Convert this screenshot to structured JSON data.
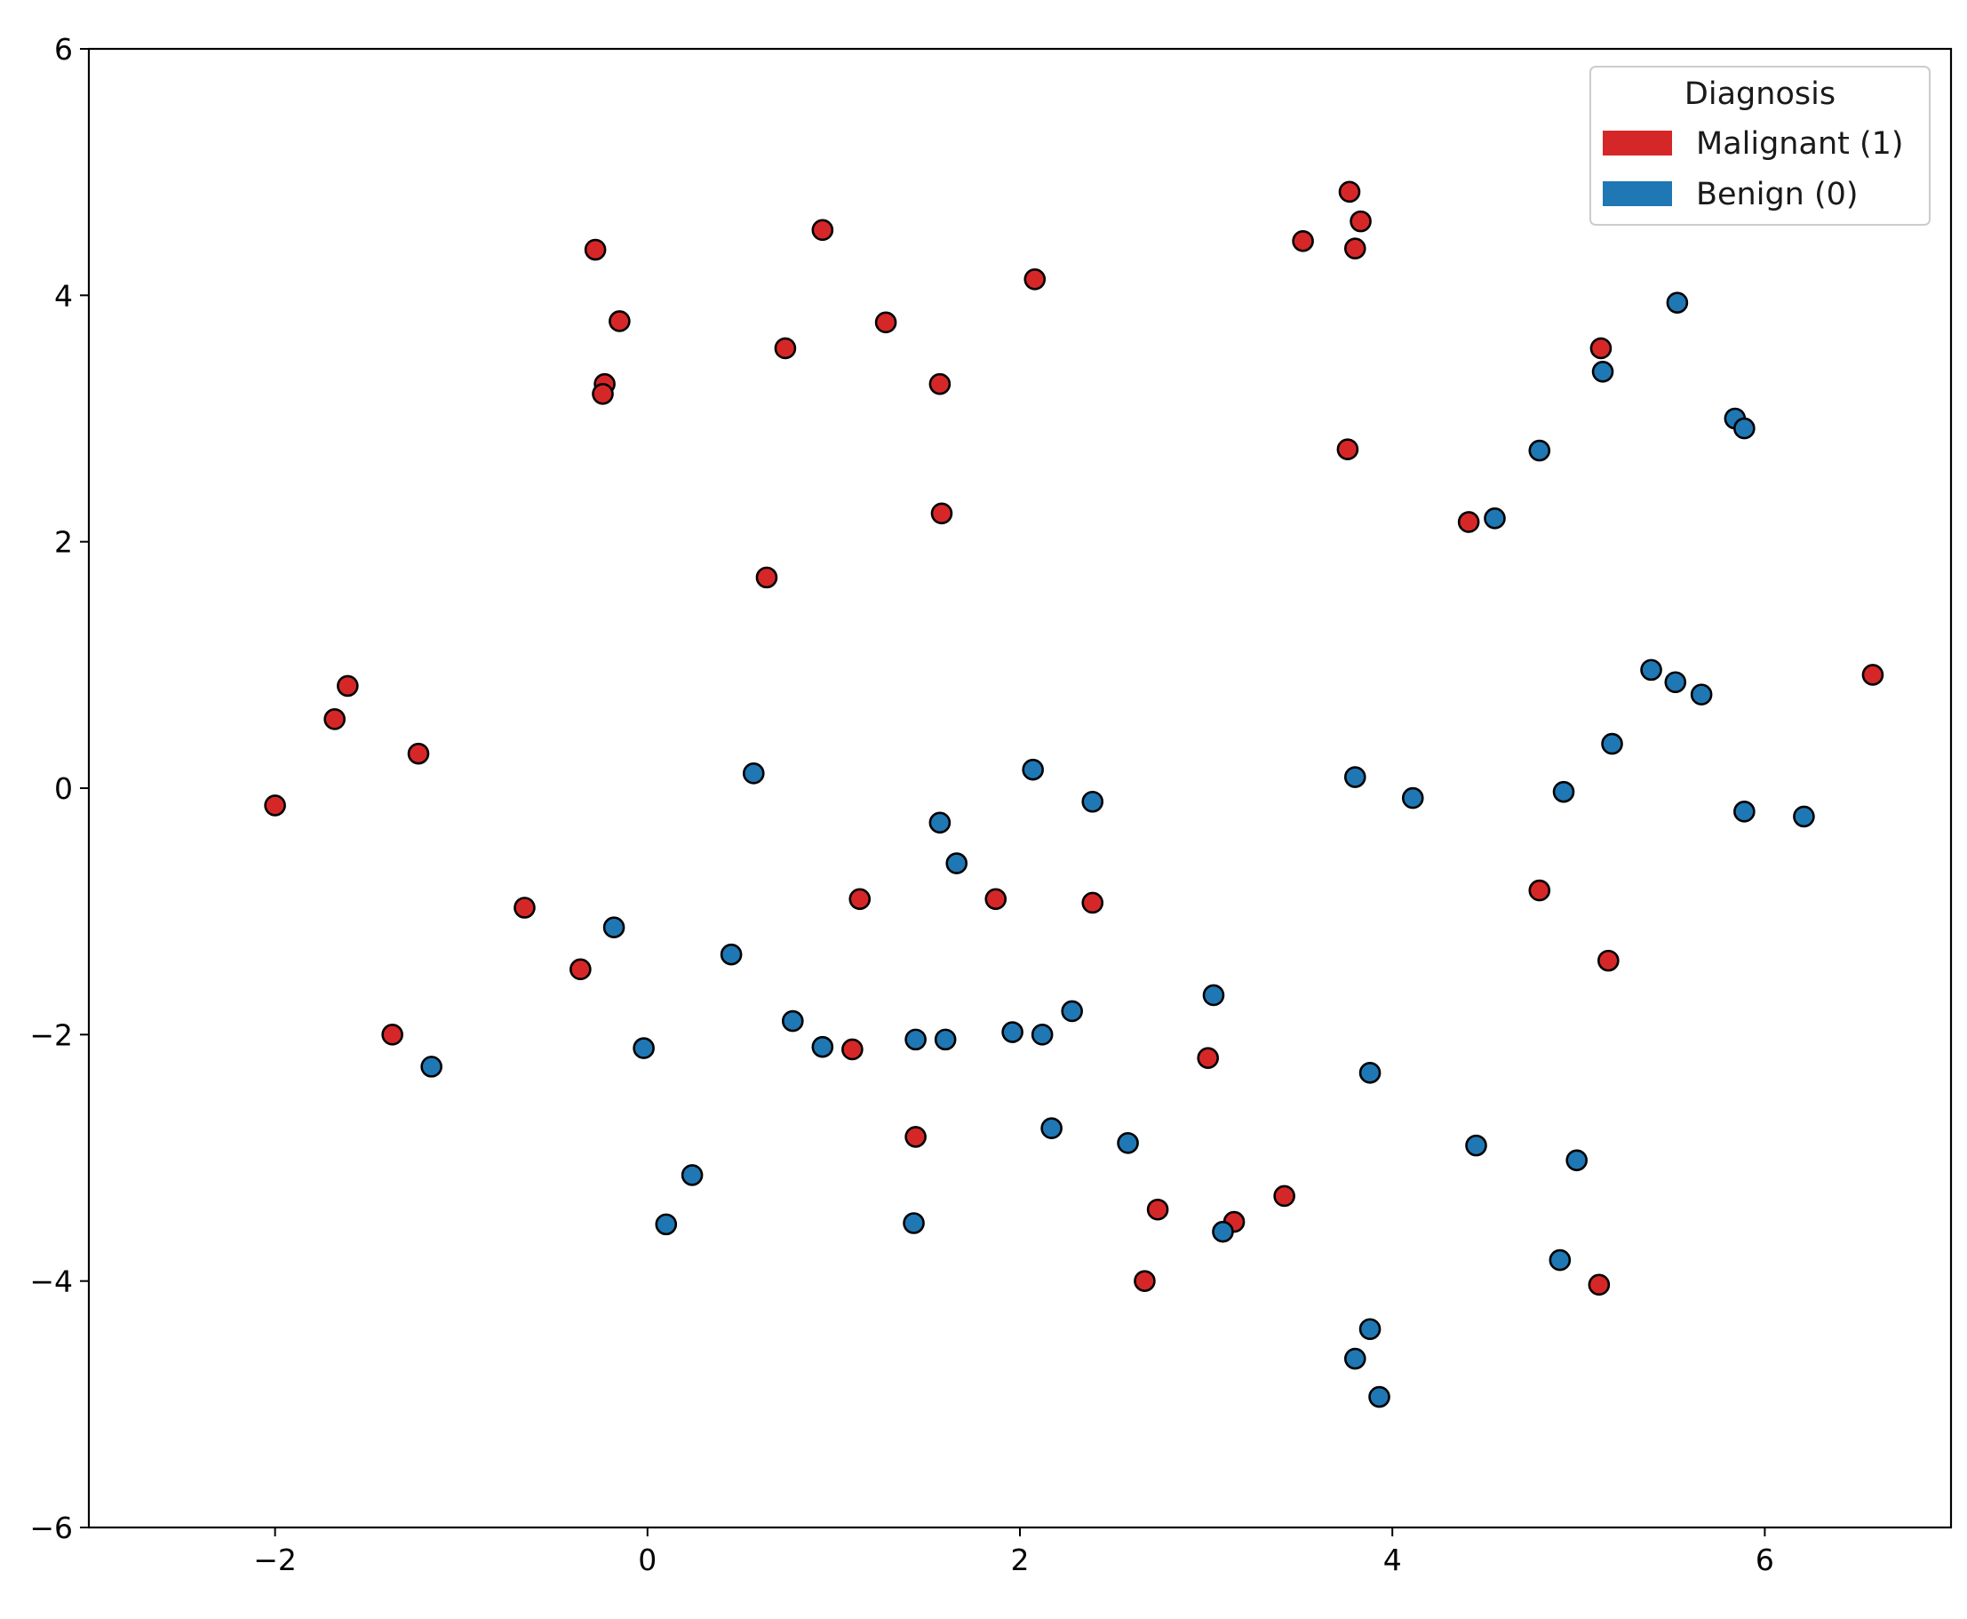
{
  "chart_data": {
    "type": "scatter",
    "title": "",
    "xlabel": "",
    "ylabel": "",
    "xlim": [
      -3,
      7
    ],
    "ylim": [
      -6,
      6
    ],
    "xticks": [
      -2,
      0,
      2,
      4,
      6
    ],
    "yticks": [
      -6,
      -4,
      -2,
      0,
      2,
      4,
      6
    ],
    "xtick_labels": [
      "−2",
      "0",
      "2",
      "4",
      "6"
    ],
    "ytick_labels": [
      "−6",
      "−4",
      "−2",
      "0",
      "2",
      "4",
      "6"
    ],
    "grid": false,
    "legend": {
      "title": "Diagnosis",
      "placement": "top-right",
      "entries": [
        {
          "label": "Malignant (1)",
          "color": "#d62728"
        },
        {
          "label": "Benign (0)",
          "color": "#1f77b4"
        }
      ]
    },
    "marker_edge_color": "#000000",
    "series": [
      {
        "name": "Malignant (1)",
        "color": "#d62728",
        "points": [
          [
            -2.0,
            -0.14
          ],
          [
            -1.68,
            0.56
          ],
          [
            -1.61,
            0.83
          ],
          [
            -1.23,
            0.28
          ],
          [
            -1.37,
            -2.0
          ],
          [
            -0.66,
            -0.97
          ],
          [
            -0.36,
            -1.47
          ],
          [
            -0.28,
            4.37
          ],
          [
            -0.15,
            3.79
          ],
          [
            -0.23,
            3.28
          ],
          [
            -0.24,
            3.2
          ],
          [
            0.94,
            4.53
          ],
          [
            0.74,
            3.57
          ],
          [
            1.28,
            3.78
          ],
          [
            1.57,
            3.28
          ],
          [
            1.58,
            2.23
          ],
          [
            0.64,
            1.71
          ],
          [
            2.08,
            4.13
          ],
          [
            1.14,
            -0.9
          ],
          [
            1.1,
            -2.12
          ],
          [
            1.44,
            -2.83
          ],
          [
            1.87,
            -0.9
          ],
          [
            2.39,
            -0.93
          ],
          [
            2.67,
            -4.0
          ],
          [
            2.74,
            -3.42
          ],
          [
            3.01,
            -2.19
          ],
          [
            3.15,
            -3.52
          ],
          [
            3.42,
            -3.31
          ],
          [
            3.52,
            4.44
          ],
          [
            3.77,
            4.84
          ],
          [
            3.83,
            4.6
          ],
          [
            3.8,
            4.38
          ],
          [
            3.76,
            2.75
          ],
          [
            4.41,
            2.16
          ],
          [
            5.12,
            3.57
          ],
          [
            4.79,
            -0.83
          ],
          [
            5.16,
            -1.4
          ],
          [
            5.11,
            -4.03
          ],
          [
            6.58,
            0.92
          ]
        ]
      },
      {
        "name": "Benign (0)",
        "color": "#1f77b4",
        "points": [
          [
            -1.16,
            -2.26
          ],
          [
            -0.18,
            -1.13
          ],
          [
            -0.02,
            -2.11
          ],
          [
            0.24,
            -3.14
          ],
          [
            0.1,
            -3.54
          ],
          [
            0.45,
            -1.35
          ],
          [
            0.57,
            0.12
          ],
          [
            0.78,
            -1.89
          ],
          [
            0.94,
            -2.1
          ],
          [
            1.44,
            -2.04
          ],
          [
            1.6,
            -2.04
          ],
          [
            1.43,
            -3.53
          ],
          [
            1.57,
            -0.28
          ],
          [
            1.66,
            -0.61
          ],
          [
            1.96,
            -1.98
          ],
          [
            2.12,
            -2.0
          ],
          [
            2.07,
            0.15
          ],
          [
            2.39,
            -0.11
          ],
          [
            2.28,
            -1.81
          ],
          [
            2.17,
            -2.76
          ],
          [
            2.58,
            -2.88
          ],
          [
            3.04,
            -1.68
          ],
          [
            3.09,
            -3.6
          ],
          [
            3.8,
            0.09
          ],
          [
            4.11,
            -0.08
          ],
          [
            3.88,
            -2.31
          ],
          [
            3.88,
            -4.39
          ],
          [
            3.8,
            -4.63
          ],
          [
            3.93,
            -4.94
          ],
          [
            4.45,
            -2.9
          ],
          [
            4.55,
            2.19
          ],
          [
            4.79,
            2.74
          ],
          [
            5.13,
            3.38
          ],
          [
            5.53,
            3.94
          ],
          [
            5.84,
            3.0
          ],
          [
            5.89,
            2.92
          ],
          [
            5.39,
            0.96
          ],
          [
            5.52,
            0.86
          ],
          [
            5.66,
            0.76
          ],
          [
            5.18,
            0.36
          ],
          [
            4.92,
            -0.03
          ],
          [
            5.89,
            -0.19
          ],
          [
            6.21,
            -0.23
          ],
          [
            4.99,
            -3.02
          ],
          [
            4.9,
            -3.83
          ]
        ]
      }
    ]
  }
}
